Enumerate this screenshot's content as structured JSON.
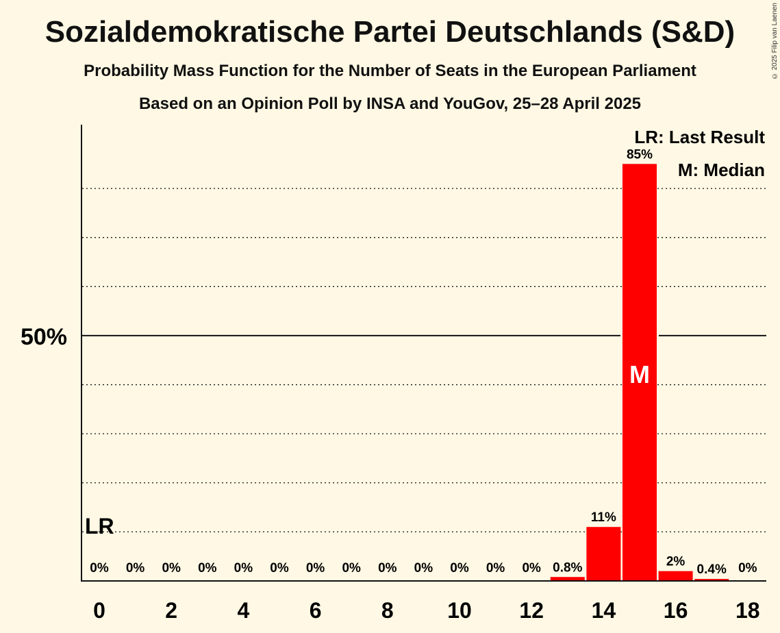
{
  "title": "Sozialdemokratische Partei Deutschlands (S&D)",
  "subtitle": "Probability Mass Function for the Number of Seats in the European Parliament",
  "subtitle2": "Based on an Opinion Poll by INSA and YouGov, 25–28 April 2025",
  "copyright": "© 2025 Filip van Laenen",
  "legend": {
    "lr": "LR: Last Result",
    "median": "M: Median"
  },
  "colors": {
    "bar": "#ff0000",
    "background": "#fef8e4"
  },
  "chart_data": {
    "type": "bar",
    "categories": [
      0,
      1,
      2,
      3,
      4,
      5,
      6,
      7,
      8,
      9,
      10,
      11,
      12,
      13,
      14,
      15,
      16,
      17,
      18
    ],
    "values": [
      0,
      0,
      0,
      0,
      0,
      0,
      0,
      0,
      0,
      0,
      0,
      0,
      0,
      0.8,
      11,
      85,
      2,
      0.4,
      0
    ],
    "labels": [
      "0%",
      "0%",
      "0%",
      "0%",
      "0%",
      "0%",
      "0%",
      "0%",
      "0%",
      "0%",
      "0%",
      "0%",
      "0%",
      "0.8%",
      "11%",
      "85%",
      "2%",
      "0.4%",
      "0%"
    ],
    "xticks": [
      "0",
      "2",
      "4",
      "6",
      "8",
      "10",
      "12",
      "14",
      "16",
      "18"
    ],
    "ytick_label": "50%",
    "ylim": [
      0,
      93
    ],
    "grid_values": [
      10,
      20,
      30,
      40,
      60,
      70,
      80
    ],
    "major_line": 50,
    "last_result_seat": 0,
    "last_result_label": "LR",
    "median_seat": 15,
    "median_label": "M"
  }
}
